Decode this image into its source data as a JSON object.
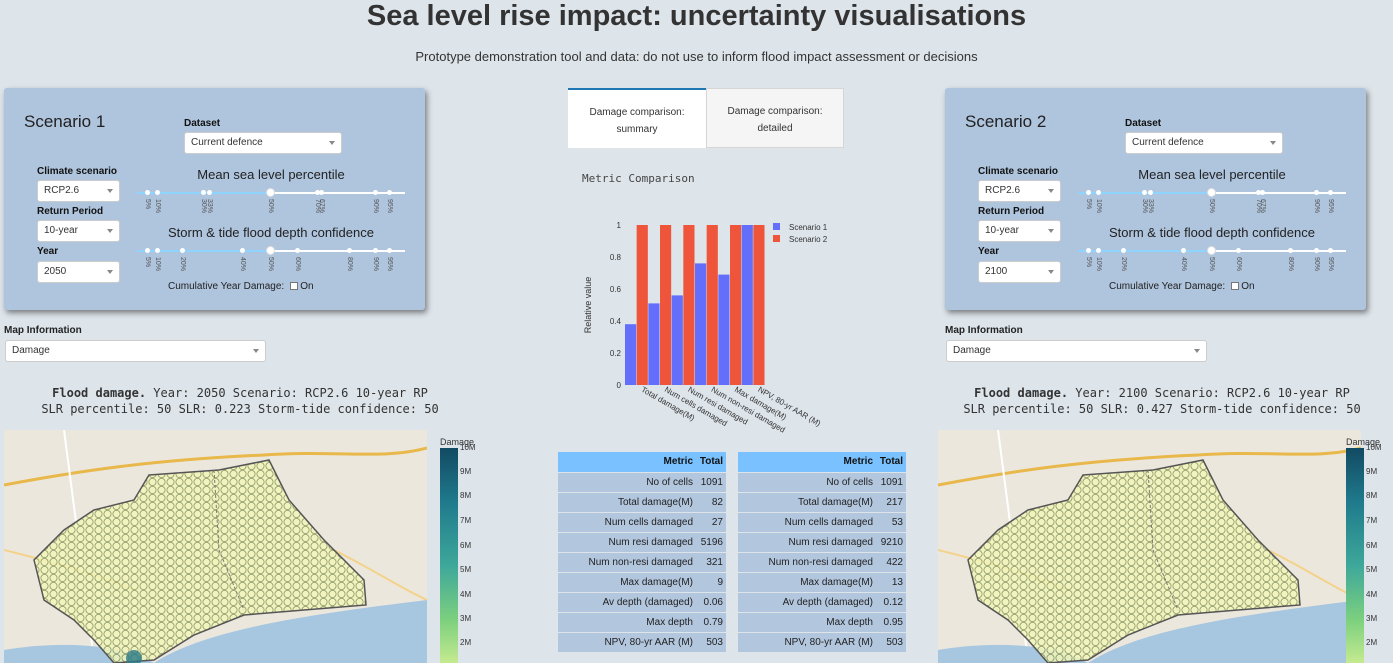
{
  "header": {
    "title": "Sea level rise impact: uncertainty visualisations",
    "subtitle": "Prototype demonstration tool and data: do not use to inform flood impact assessment or decisions"
  },
  "labels": {
    "dataset": "Dataset",
    "climate": "Climate scenario",
    "return_period": "Return Period",
    "year": "Year",
    "slr_title": "Mean sea level percentile",
    "storm_title": "Storm & tide flood depth confidence",
    "cumulative": "Cumulative Year Damage:",
    "on": "On",
    "map_info": "Map Information"
  },
  "slr_marks": [
    "5%",
    "10%",
    "30%",
    "33%",
    "50%",
    "70%",
    "67%",
    "90%",
    "95%"
  ],
  "storm_marks": [
    "5%",
    "10%",
    "20%",
    "40%",
    "50%",
    "60%",
    "80%",
    "90%",
    "95%"
  ],
  "scenario1": {
    "name": "Scenario 1",
    "dataset": "Current defence",
    "climate": "RCP2.6",
    "return_period": "10-year",
    "year": "2050",
    "map_info": "Damage",
    "slr_value": 50,
    "storm_value": 50,
    "cumulative": false,
    "caption_bold": "Flood damage.",
    "caption1": "Year: 2050 Scenario: RCP2.6 10-year RP",
    "caption2": "SLR percentile: 50 SLR: 0.223 Storm-tide confidence: 50"
  },
  "scenario2": {
    "name": "Scenario 2",
    "dataset": "Current defence",
    "climate": "RCP2.6",
    "return_period": "10-year",
    "year": "2100",
    "map_info": "Damage",
    "slr_value": 50,
    "storm_value": 50,
    "cumulative": false,
    "caption_bold": "Flood damage.",
    "caption1": "Year: 2100 Scenario: RCP2.6 10-year RP",
    "caption2": "SLR percentile: 50 SLR: 0.427 Storm-tide confidence: 50"
  },
  "tabs": [
    {
      "line1": "Damage comparison:",
      "line2": "summary"
    },
    {
      "line1": "Damage comparison:",
      "line2": "detailed"
    }
  ],
  "colorbar": {
    "title": "Damage",
    "ticks": [
      "10M",
      "9M",
      "8M",
      "7M",
      "6M",
      "5M",
      "4M",
      "3M",
      "2M"
    ]
  },
  "table_headers": {
    "metric": "Metric",
    "total": "Total"
  },
  "table1": [
    [
      "No of cells",
      "1091"
    ],
    [
      "Total damage(M)",
      "82"
    ],
    [
      "Num cells damaged",
      "27"
    ],
    [
      "Num resi damaged",
      "5196"
    ],
    [
      "Num non-resi damaged",
      "321"
    ],
    [
      "Max damage(M)",
      "9"
    ],
    [
      "Av depth (damaged)",
      "0.06"
    ],
    [
      "Max depth",
      "0.79"
    ],
    [
      "NPV, 80-yr AAR (M)",
      "503"
    ]
  ],
  "table2": [
    [
      "No of cells",
      "1091"
    ],
    [
      "Total damage(M)",
      "217"
    ],
    [
      "Num cells damaged",
      "53"
    ],
    [
      "Num resi damaged",
      "9210"
    ],
    [
      "Num non-resi damaged",
      "422"
    ],
    [
      "Max damage(M)",
      "13"
    ],
    [
      "Av depth (damaged)",
      "0.12"
    ],
    [
      "Max depth",
      "0.95"
    ],
    [
      "NPV, 80-yr AAR (M)",
      "503"
    ]
  ],
  "chart_data": {
    "type": "bar",
    "title": "Metric Comparison",
    "xlabel": "",
    "ylabel": "Relative value",
    "ylim": [
      0,
      1
    ],
    "yticks": [
      "0",
      "0.2",
      "0.4",
      "0.6",
      "0.8",
      "1"
    ],
    "categories": [
      "Total damage(M)",
      "Num cells damaged",
      "Num resi damaged",
      "Num non-resi damaged",
      "Max damage(M)",
      "NPV, 80-yr AAR (M)"
    ],
    "series": [
      {
        "name": "Scenario 1",
        "color": "#636efa",
        "values": [
          0.38,
          0.51,
          0.56,
          0.76,
          0.69,
          1.0
        ]
      },
      {
        "name": "Scenario 2",
        "color": "#ef553b",
        "values": [
          1,
          1,
          1,
          1,
          1,
          1
        ]
      }
    ],
    "legend": "top-right"
  }
}
